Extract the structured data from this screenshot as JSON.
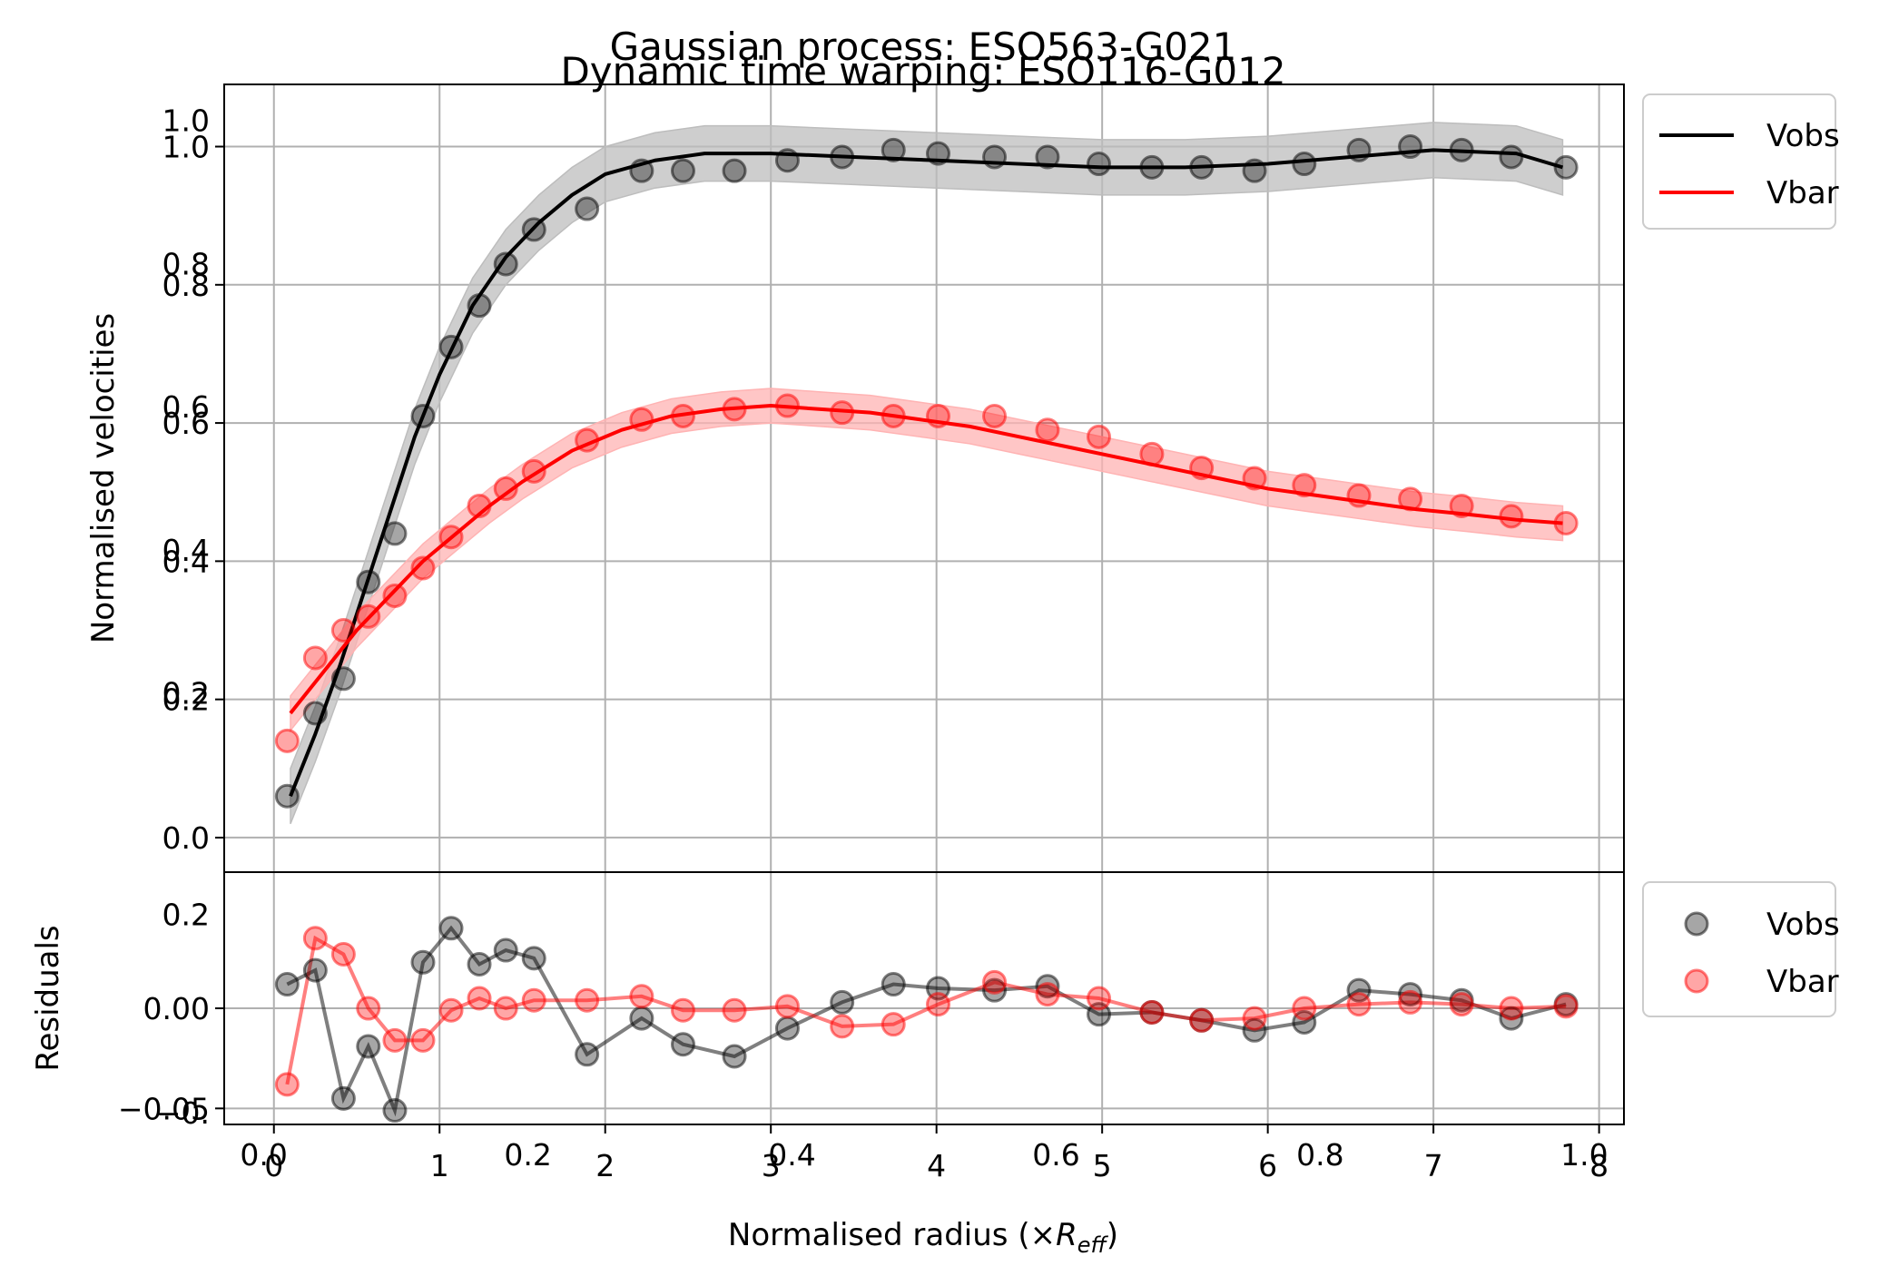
{
  "figure": {
    "titles": [
      "Gaussian process: ESO563-G021",
      "Dynamic time warping: ESO116-G012"
    ],
    "xlabel_text": "Normalised radius (×",
    "xlabel_math_base": "R",
    "xlabel_math_sub": "eff",
    "xlabel_close": ")"
  },
  "chart_data": [
    {
      "type": "line",
      "panel": "main",
      "ylabel": "Normalised velocities",
      "xlim": [
        -0.3,
        8.15
      ],
      "ylim": [
        -0.05,
        1.09
      ],
      "grid": true,
      "legend_position": "outside-top-right",
      "x_ticks": [
        0,
        1,
        2,
        3,
        4,
        5,
        6,
        7,
        8
      ],
      "y_ticks": [
        0.0,
        0.2,
        0.4,
        0.6,
        0.8,
        1.0
      ],
      "y_tick_labels": [
        "0.0",
        "0.2",
        "0.4",
        "0.6",
        "0.8",
        "1.0"
      ],
      "overlap_x_ticks": [
        0,
        0.2,
        0.4,
        0.6,
        0.8,
        1.0
      ],
      "overlap_x_tick_labels": [
        "0.0",
        "0.2",
        "0.4",
        "0.6",
        "0.8",
        "1.0"
      ],
      "overlap_y_ticks": [
        0.2,
        0.4,
        0.6,
        0.8,
        1.0
      ],
      "overlap_y_tick_labels": [
        "0.2",
        "0.4",
        "0.6",
        "0.8",
        "1.0"
      ],
      "series": [
        {
          "name": "Vobs",
          "color": "#000000",
          "band_color": "#bdbdbd",
          "curve_x": [
            0.1,
            0.25,
            0.4,
            0.55,
            0.7,
            0.85,
            1.0,
            1.2,
            1.4,
            1.6,
            1.8,
            2.0,
            2.3,
            2.6,
            3.0,
            3.5,
            4.0,
            4.5,
            5.0,
            5.5,
            6.0,
            6.5,
            7.0,
            7.5,
            7.78
          ],
          "curve_y": [
            0.06,
            0.15,
            0.25,
            0.36,
            0.47,
            0.58,
            0.67,
            0.77,
            0.84,
            0.89,
            0.93,
            0.96,
            0.98,
            0.99,
            0.99,
            0.985,
            0.98,
            0.975,
            0.97,
            0.97,
            0.975,
            0.985,
            0.995,
            0.99,
            0.97
          ],
          "band_halfwidth": 0.04,
          "points_x": [
            0.08,
            0.25,
            0.42,
            0.57,
            0.73,
            0.9,
            1.07,
            1.24,
            1.4,
            1.57,
            1.89,
            2.22,
            2.47,
            2.78,
            3.1,
            3.43,
            3.74,
            4.01,
            4.35,
            4.67,
            4.98,
            5.3,
            5.6,
            5.92,
            6.22,
            6.55,
            6.86,
            7.17,
            7.47,
            7.8
          ],
          "points_y": [
            0.06,
            0.18,
            0.23,
            0.37,
            0.44,
            0.61,
            0.71,
            0.77,
            0.83,
            0.88,
            0.91,
            0.965,
            0.965,
            0.965,
            0.98,
            0.985,
            0.995,
            0.99,
            0.985,
            0.985,
            0.975,
            0.97,
            0.97,
            0.965,
            0.975,
            0.995,
            1.0,
            0.995,
            0.985,
            0.97
          ]
        },
        {
          "name": "Vbar",
          "color": "#ff0000",
          "band_color": "#ffb3b3",
          "curve_x": [
            0.1,
            0.3,
            0.5,
            0.7,
            0.9,
            1.1,
            1.3,
            1.5,
            1.8,
            2.1,
            2.4,
            2.7,
            3.0,
            3.3,
            3.6,
            3.9,
            4.2,
            4.5,
            4.8,
            5.1,
            5.4,
            5.7,
            6.0,
            6.3,
            6.6,
            6.9,
            7.2,
            7.5,
            7.78
          ],
          "curve_y": [
            0.18,
            0.24,
            0.3,
            0.35,
            0.4,
            0.44,
            0.48,
            0.515,
            0.56,
            0.59,
            0.61,
            0.62,
            0.625,
            0.62,
            0.615,
            0.605,
            0.595,
            0.58,
            0.565,
            0.55,
            0.535,
            0.52,
            0.505,
            0.495,
            0.485,
            0.475,
            0.468,
            0.46,
            0.455
          ],
          "band_halfwidth": 0.025,
          "points_x": [
            0.08,
            0.25,
            0.42,
            0.57,
            0.73,
            0.9,
            1.07,
            1.24,
            1.4,
            1.57,
            1.89,
            2.22,
            2.47,
            2.78,
            3.1,
            3.43,
            3.74,
            4.01,
            4.35,
            4.67,
            4.98,
            5.3,
            5.6,
            5.92,
            6.22,
            6.55,
            6.86,
            7.17,
            7.47,
            7.8
          ],
          "points_y": [
            0.14,
            0.26,
            0.3,
            0.32,
            0.35,
            0.39,
            0.435,
            0.48,
            0.505,
            0.53,
            0.575,
            0.605,
            0.61,
            0.62,
            0.625,
            0.615,
            0.61,
            0.61,
            0.61,
            0.59,
            0.58,
            0.555,
            0.535,
            0.52,
            0.51,
            0.495,
            0.49,
            0.48,
            0.465,
            0.455
          ]
        }
      ]
    },
    {
      "type": "line",
      "panel": "residuals",
      "ylabel": "Residuals",
      "xlim": [
        -0.3,
        8.15
      ],
      "ylim": [
        -0.058,
        0.068
      ],
      "grid": true,
      "legend_position": "outside-top-right",
      "y_ticks": [
        -0.05,
        0.0
      ],
      "y_tick_labels": [
        "−0.05",
        "0.00"
      ],
      "overlap_y_ticks": [
        0.05,
        -0.05
      ],
      "overlap_y_tick_labels": [
        "0.2",
        "−0."
      ],
      "series": [
        {
          "name": "Vobs",
          "color": "#000000",
          "x": [
            0.08,
            0.25,
            0.42,
            0.57,
            0.73,
            0.9,
            1.07,
            1.24,
            1.4,
            1.57,
            1.89,
            2.22,
            2.47,
            2.78,
            3.1,
            3.43,
            3.74,
            4.01,
            4.35,
            4.67,
            4.98,
            5.3,
            5.6,
            5.92,
            6.22,
            6.55,
            6.86,
            7.17,
            7.47,
            7.8
          ],
          "y": [
            0.012,
            0.019,
            -0.045,
            -0.019,
            -0.051,
            0.023,
            0.04,
            0.022,
            0.029,
            0.025,
            -0.023,
            -0.005,
            -0.018,
            -0.024,
            -0.01,
            0.003,
            0.012,
            0.01,
            0.009,
            0.011,
            -0.003,
            -0.002,
            -0.006,
            -0.011,
            -0.007,
            0.009,
            0.007,
            0.004,
            -0.005,
            0.002
          ]
        },
        {
          "name": "Vbar",
          "color": "#ff0000",
          "x": [
            0.08,
            0.25,
            0.42,
            0.57,
            0.73,
            0.9,
            1.07,
            1.24,
            1.4,
            1.57,
            1.89,
            2.22,
            2.47,
            2.78,
            3.1,
            3.43,
            3.74,
            4.01,
            4.35,
            4.67,
            4.98,
            5.3,
            5.6,
            5.92,
            6.22,
            6.55,
            6.86,
            7.17,
            7.47,
            7.8
          ],
          "y": [
            -0.038,
            0.035,
            0.027,
            0.0,
            -0.016,
            -0.016,
            -0.001,
            0.005,
            0.0,
            0.004,
            0.004,
            0.006,
            -0.001,
            -0.001,
            0.001,
            -0.009,
            -0.008,
            0.002,
            0.013,
            0.007,
            0.005,
            -0.002,
            -0.006,
            -0.005,
            0.0,
            0.002,
            0.003,
            0.002,
            0.0,
            0.001
          ]
        }
      ]
    }
  ]
}
